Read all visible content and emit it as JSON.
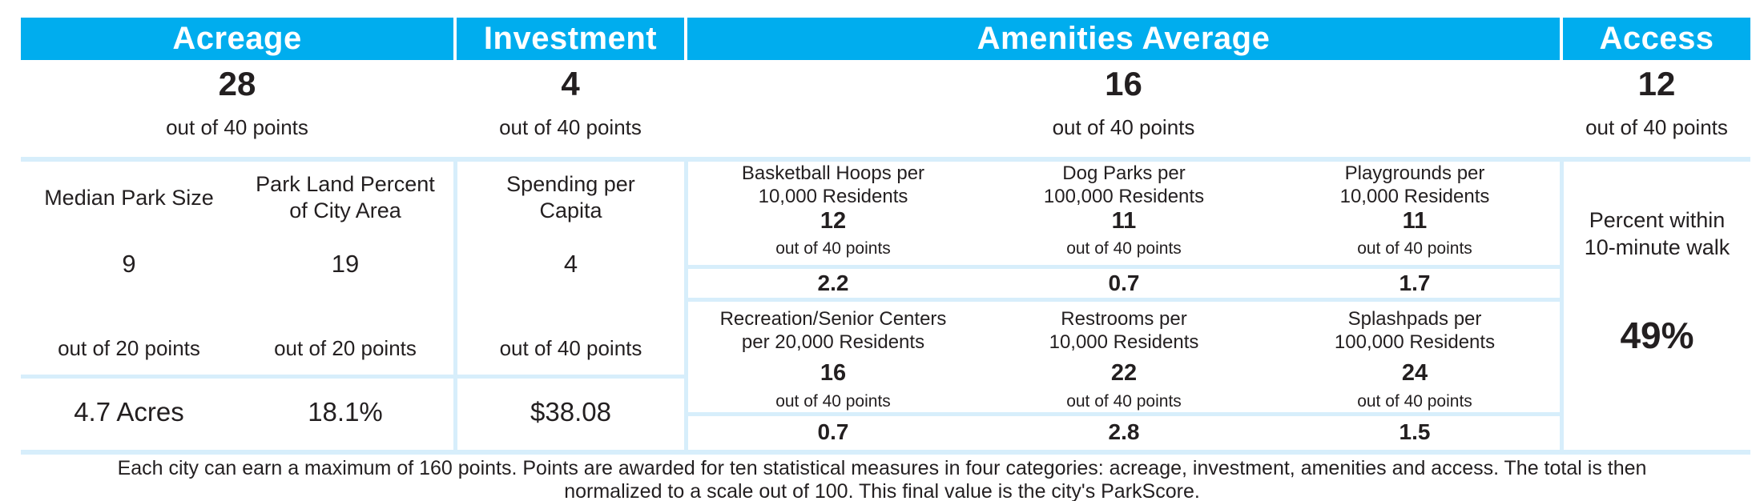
{
  "accent_color": "#00ADEE",
  "divider_color": "#D7EEFB",
  "text_color": "#231F20",
  "ui": {
    "header": {
      "acreage": "Acreage",
      "investment": "Investment",
      "amenities": "Amenities Average",
      "access": "Access"
    },
    "scores": {
      "acreage": {
        "points": "28",
        "caption": "out of 40 points"
      },
      "investment": {
        "points": "4",
        "caption": "out of 40 points"
      },
      "amenities": {
        "points": "16",
        "caption": "out of 40 points"
      },
      "access": {
        "points": "12",
        "caption": "out of 40 points"
      }
    },
    "acreage": {
      "measures": [
        {
          "label_line1": "Median Park Size",
          "label_line2": "",
          "points": "9",
          "caption": "out of 20 points",
          "value": "4.7 Acres"
        },
        {
          "label_line1": "Park Land Percent",
          "label_line2": "of City Area",
          "points": "19",
          "caption": "out of 20 points",
          "value": "18.1%"
        }
      ]
    },
    "investment": {
      "measure": {
        "label_line1": "Spending per",
        "label_line2": "Capita",
        "points": "4",
        "caption": "out of 40 points",
        "value": "$38.08"
      }
    },
    "amenities": {
      "rows": [
        [
          {
            "label_line1": "Basketball Hoops per",
            "label_line2": "10,000 Residents",
            "points": "12",
            "caption": "out of 40 points",
            "value": "2.2"
          },
          {
            "label_line1": "Dog Parks per",
            "label_line2": "100,000 Residents",
            "points": "11",
            "caption": "out of 40 points",
            "value": "0.7"
          },
          {
            "label_line1": "Playgrounds per",
            "label_line2": "10,000 Residents",
            "points": "11",
            "caption": "out of 40 points",
            "value": "1.7"
          }
        ],
        [
          {
            "label_line1": "Recreation/Senior Centers",
            "label_line2": "per 20,000 Residents",
            "points": "16",
            "caption": "out of 40 points",
            "value": "0.7"
          },
          {
            "label_line1": "Restrooms per",
            "label_line2": "10,000 Residents",
            "points": "22",
            "caption": "out of 40 points",
            "value": "2.8"
          },
          {
            "label_line1": "Splashpads per",
            "label_line2": "100,000 Residents",
            "points": "24",
            "caption": "out of 40 points",
            "value": "1.5"
          }
        ]
      ]
    },
    "access": {
      "label_line1": "Percent within",
      "label_line2": "10-minute walk",
      "value": "49%"
    },
    "footer": {
      "line1": "Each city can earn a maximum of 160 points. Points are awarded for ten statistical measures in four categories: acreage, investment, amenities and access. The total is then",
      "line2": "normalized to a scale out of 100. This final value is the city's ParkScore."
    }
  },
  "chart_data": {
    "type": "table",
    "title": "ParkScore category breakdown",
    "categories": [
      {
        "name": "Acreage",
        "points": 28,
        "max_points": 40,
        "measures": [
          {
            "name": "Median Park Size",
            "points": 9,
            "max_points": 20,
            "value": "4.7 Acres"
          },
          {
            "name": "Park Land Percent of City Area",
            "points": 19,
            "max_points": 20,
            "value": "18.1%"
          }
        ]
      },
      {
        "name": "Investment",
        "points": 4,
        "max_points": 40,
        "measures": [
          {
            "name": "Spending per Capita",
            "points": 4,
            "max_points": 40,
            "value": "$38.08"
          }
        ]
      },
      {
        "name": "Amenities Average",
        "points": 16,
        "max_points": 40,
        "measures": [
          {
            "name": "Basketball Hoops per 10,000 Residents",
            "points": 12,
            "max_points": 40,
            "value": 2.2
          },
          {
            "name": "Dog Parks per 100,000 Residents",
            "points": 11,
            "max_points": 40,
            "value": 0.7
          },
          {
            "name": "Playgrounds per 10,000 Residents",
            "points": 11,
            "max_points": 40,
            "value": 1.7
          },
          {
            "name": "Recreation/Senior Centers per 20,000 Residents",
            "points": 16,
            "max_points": 40,
            "value": 0.7
          },
          {
            "name": "Restrooms per 10,000 Residents",
            "points": 22,
            "max_points": 40,
            "value": 2.8
          },
          {
            "name": "Splashpads per 100,000 Residents",
            "points": 24,
            "max_points": 40,
            "value": 1.5
          }
        ]
      },
      {
        "name": "Access",
        "points": 12,
        "max_points": 40,
        "measures": [
          {
            "name": "Percent within 10-minute walk",
            "value": "49%"
          }
        ]
      }
    ],
    "note": "Each city can earn a maximum of 160 points. Points are awarded for ten statistical measures in four categories: acreage, investment, amenities and access. The total is then normalized to a scale out of 100. This final value is the city's ParkScore."
  }
}
